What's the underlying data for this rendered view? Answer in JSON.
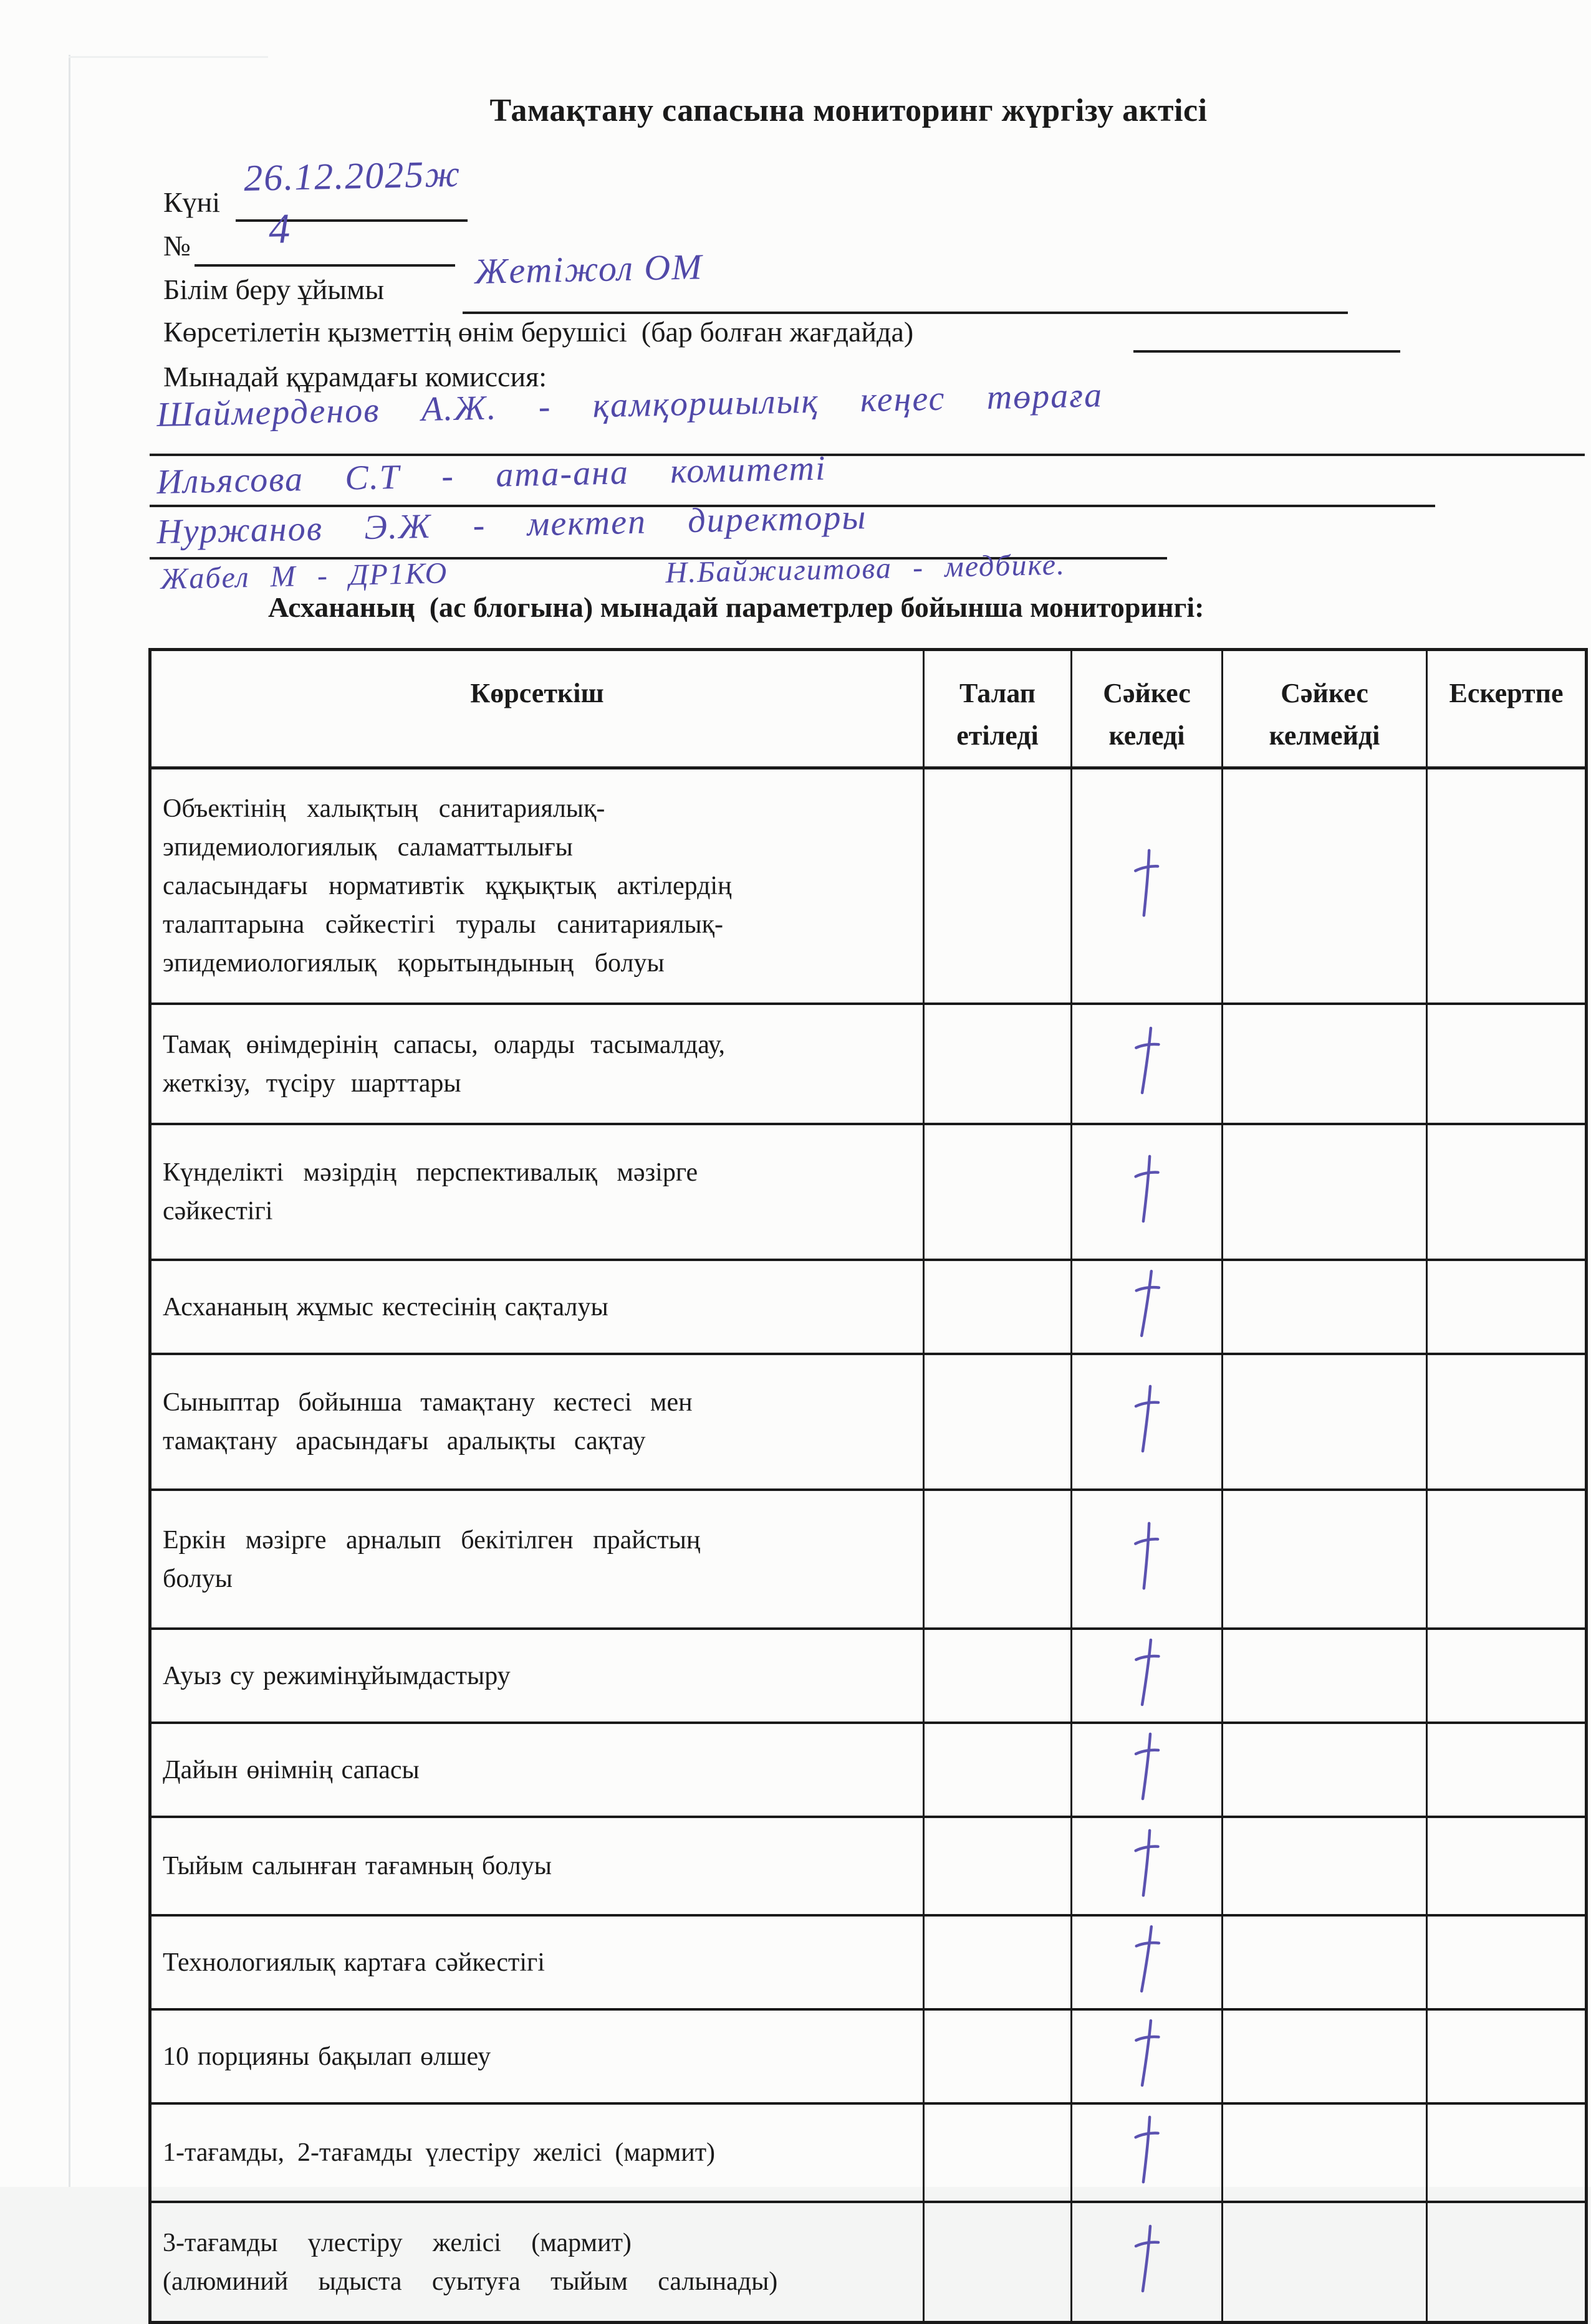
{
  "document": {
    "title": "Тамақтану сапасына мониторинг жүргізу актісі",
    "fields": {
      "date_label": "Күні",
      "date_value": "26.12.2025ж",
      "number_label": "№",
      "number_value": "4",
      "org_label": "Білім беру ұйымы",
      "org_value": "Жетіжол ОМ",
      "provider_label": "Көрсетілетін қызметтің өнім берушісі  (бар болған жағдайда)",
      "commission_label": "Мынадай құрамдағы комиссия:"
    },
    "commission": [
      "Шаймерденов А.Ж. - қамқоршылық кеңес төраға",
      "Ильясова С.Т - ата-ана комитеті",
      "Нуржанов Э.Ж - мектеп директоры",
      "Жабел М - ДР1КО",
      "Н.Байжигитова - медбике."
    ],
    "subtitle": "Асхананың  (ас блогына) мынадай параметрлер бойынша мониторингі:"
  },
  "table": {
    "headers": [
      "Көрсеткіш",
      "Талап етіледі",
      "Сәйкес келеді",
      "Сәйкес келмейді",
      "Ескертпе"
    ],
    "ink_color": "#5b52b0",
    "check_mark": "+",
    "rows": [
      {
        "indicator": "Объектінің халықтың санитариялық-\nэпидемиологиялық саламаттылығы\nсаласындағы нормативтік құқықтық актілердің\nталаптарына сәйкестігі туралы санитариялық-\nэпидемиологиялық қорытындының болуы",
        "talap_etiledi": "",
        "saikes_keledi": "+",
        "saikes_kelmeidi": "",
        "eskertpe": ""
      },
      {
        "indicator": "Тамақ өнімдерінің сапасы, оларды тасымалдау,\nжеткізу, түсіру шарттары",
        "talap_etiledi": "",
        "saikes_keledi": "+",
        "saikes_kelmeidi": "",
        "eskertpe": ""
      },
      {
        "indicator": "Күнделікті мәзірдің перспективалық мәзірге\nсәйкестігі",
        "talap_etiledi": "",
        "saikes_keledi": "+",
        "saikes_kelmeidi": "",
        "eskertpe": ""
      },
      {
        "indicator": "Асхананың жұмыс кестесінің сақталуы",
        "talap_etiledi": "",
        "saikes_keledi": "+",
        "saikes_kelmeidi": "",
        "eskertpe": ""
      },
      {
        "indicator": "Сыныптар бойынша тамақтану кестесі мен\nтамақтану арасындағы аралықты сақтау",
        "talap_etiledi": "",
        "saikes_keledi": "+",
        "saikes_kelmeidi": "",
        "eskertpe": ""
      },
      {
        "indicator": "Еркін мәзірге арналып бекітілген прайстың\nболуы",
        "talap_etiledi": "",
        "saikes_keledi": "+",
        "saikes_kelmeidi": "",
        "eskertpe": ""
      },
      {
        "indicator": "Ауыз су режимінұйымдастыру",
        "talap_etiledi": "",
        "saikes_keledi": "+",
        "saikes_kelmeidi": "",
        "eskertpe": ""
      },
      {
        "indicator": "Дайын өнімнің сапасы",
        "talap_etiledi": "",
        "saikes_keledi": "+",
        "saikes_kelmeidi": "",
        "eskertpe": ""
      },
      {
        "indicator": "Тыйым салынған тағамның болуы",
        "talap_etiledi": "",
        "saikes_keledi": "+",
        "saikes_kelmeidi": "",
        "eskertpe": ""
      },
      {
        "indicator": "Технологиялық картаға сәйкестігі",
        "talap_etiledi": "",
        "saikes_keledi": "+",
        "saikes_kelmeidi": "",
        "eskertpe": ""
      },
      {
        "indicator": "10 порцияны бақылап өлшеу",
        "talap_etiledi": "",
        "saikes_keledi": "+",
        "saikes_kelmeidi": "",
        "eskertpe": ""
      },
      {
        "indicator": "1-тағамды, 2-тағамды үлестіру желісі  (мармит)",
        "talap_etiledi": "",
        "saikes_keledi": "+",
        "saikes_kelmeidi": "",
        "eskertpe": ""
      },
      {
        "indicator": "3-тағамды үлестіру желісі (мармит)\n(алюминий ыдыста суытуға тыйым салынады)",
        "talap_etiledi": "",
        "saikes_keledi": "+",
        "saikes_kelmeidi": "",
        "eskertpe": ""
      }
    ]
  }
}
